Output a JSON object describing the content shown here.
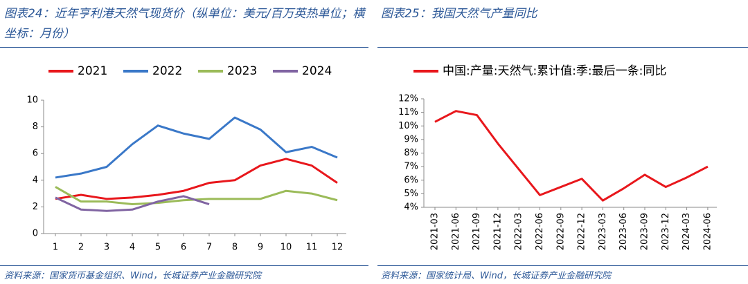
{
  "chart_data": [
    {
      "type": "line",
      "title": "图表24：近年亨利港天然气现货价（纵单位：美元/百万英热单位；横坐标：月份）",
      "source": "资料来源：国家货币基金组织、Wind，长城证券产业金融研究院",
      "categories": [
        "1",
        "2",
        "3",
        "4",
        "5",
        "6",
        "7",
        "8",
        "9",
        "10",
        "11",
        "12"
      ],
      "series": [
        {
          "name": "2021",
          "color": "#e8171c",
          "values": [
            2.6,
            2.9,
            2.6,
            2.7,
            2.9,
            3.2,
            3.8,
            4.0,
            5.1,
            5.6,
            5.1,
            3.8
          ]
        },
        {
          "name": "2022",
          "color": "#3a78c8",
          "values": [
            4.2,
            4.5,
            5.0,
            6.7,
            8.1,
            7.5,
            7.1,
            8.7,
            7.8,
            6.1,
            6.5,
            5.7
          ]
        },
        {
          "name": "2023",
          "color": "#9bbb59",
          "values": [
            3.5,
            2.4,
            2.4,
            2.2,
            2.3,
            2.5,
            2.6,
            2.6,
            2.6,
            3.2,
            3.0,
            2.5
          ]
        },
        {
          "name": "2024",
          "color": "#8064a2",
          "values": [
            2.7,
            1.8,
            1.7,
            1.8,
            2.4,
            2.8,
            2.2,
            null,
            null,
            null,
            null,
            null
          ]
        }
      ],
      "ylim": [
        0,
        10
      ],
      "yticks": [
        0,
        2,
        4,
        6,
        8,
        10
      ],
      "legend": "top"
    },
    {
      "type": "line",
      "title": "图表25：我国天然气产量同比",
      "source": "资料来源：国家统计局、Wind，长城证券产业金融研究院",
      "categories": [
        "2021-03",
        "2021-06",
        "2021-09",
        "2021-12",
        "2022-03",
        "2022-06",
        "2022-09",
        "2022-12",
        "2023-03",
        "2023-06",
        "2023-09",
        "2023-12",
        "2024-03",
        "2024-06"
      ],
      "series": [
        {
          "name": "中国:产量:天然气:累计值:季:最后一条:同比",
          "color": "#e8171c",
          "values": [
            10.3,
            11.1,
            10.8,
            8.7,
            6.8,
            4.9,
            5.5,
            6.1,
            4.5,
            5.4,
            6.4,
            5.5,
            6.2,
            7.0
          ]
        }
      ],
      "ylim": [
        4,
        12
      ],
      "yticks": [
        {
          "value": 4,
          "label": "4%"
        },
        {
          "value": 5,
          "label": "5%"
        },
        {
          "value": 6,
          "label": "6%"
        },
        {
          "value": 7,
          "label": "7%"
        },
        {
          "value": 8,
          "label": "8%"
        },
        {
          "value": 9,
          "label": "9%"
        },
        {
          "value": 10,
          "label": "10%"
        },
        {
          "value": 11,
          "label": "11%"
        },
        {
          "value": 12,
          "label": "12%"
        }
      ],
      "legend": "top"
    }
  ]
}
